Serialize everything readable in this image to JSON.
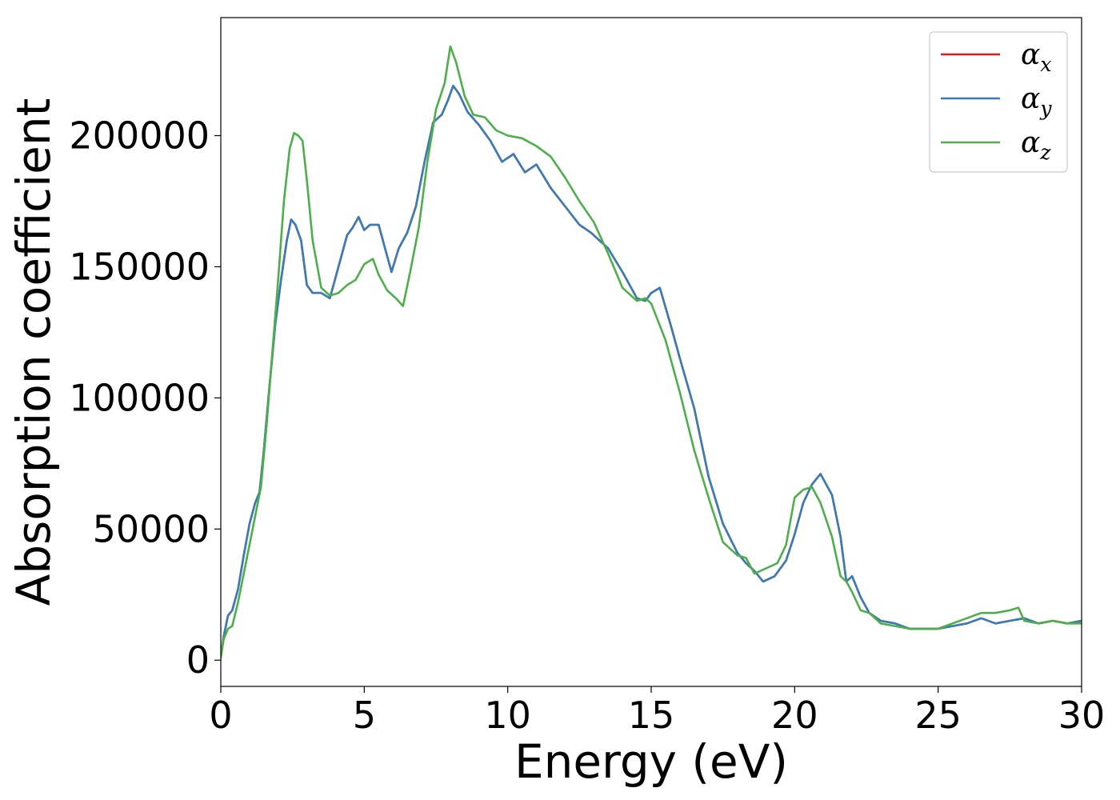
{
  "chart_data": {
    "type": "line",
    "xlabel": "Energy (eV)",
    "ylabel": "Absorption coefficient",
    "xlim": [
      0,
      30
    ],
    "ylim": [
      -10000,
      245000
    ],
    "xticks": [
      0,
      5,
      10,
      15,
      20,
      25,
      30
    ],
    "xtick_labels": [
      "0",
      "5",
      "10",
      "15",
      "20",
      "25",
      "30"
    ],
    "yticks": [
      0,
      50000,
      100000,
      150000,
      200000
    ],
    "ytick_labels": [
      "0",
      "50000",
      "100000",
      "150000",
      "200000"
    ],
    "grid": false,
    "legend_position": "top-right",
    "series": [
      {
        "name": "α_x",
        "legend_main": "α",
        "legend_sub": "x",
        "color": "#e41a1c",
        "x": [
          0,
          0.1,
          0.25,
          0.4,
          0.6,
          0.8,
          1.0,
          1.2,
          1.35,
          1.5,
          1.7,
          1.9,
          2.1,
          2.3,
          2.45,
          2.6,
          2.8,
          3.0,
          3.2,
          3.5,
          3.8,
          4.1,
          4.4,
          4.6,
          4.8,
          5.0,
          5.2,
          5.5,
          5.8,
          5.95,
          6.2,
          6.5,
          6.8,
          7.1,
          7.4,
          7.7,
          7.9,
          8.1,
          8.3,
          8.6,
          9.0,
          9.4,
          9.8,
          10.2,
          10.6,
          11.0,
          11.5,
          12.0,
          12.5,
          12.9,
          13.5,
          14.0,
          14.5,
          14.8,
          15.0,
          15.3,
          15.7,
          16.0,
          16.5,
          17.0,
          17.5,
          18.0,
          18.3,
          18.6,
          18.9,
          19.3,
          19.7,
          20.0,
          20.3,
          20.6,
          20.9,
          21.3,
          21.6,
          21.8,
          22.0,
          22.3,
          22.6,
          23.0,
          23.5,
          24.0,
          24.5,
          25.0,
          25.5,
          26.0,
          26.5,
          27.0,
          27.5,
          28.0,
          28.5,
          29.0,
          29.5,
          30.0
        ],
        "values": [
          1000,
          9000,
          17000,
          19000,
          27000,
          40000,
          52000,
          60000,
          64000,
          80000,
          105000,
          128000,
          145000,
          160000,
          168000,
          166000,
          160000,
          143000,
          140000,
          140000,
          138000,
          150000,
          162000,
          165000,
          169000,
          164000,
          166000,
          166000,
          154000,
          148000,
          157000,
          163000,
          173000,
          190000,
          205000,
          208000,
          213000,
          219000,
          216000,
          209000,
          204000,
          198000,
          190000,
          193000,
          186000,
          189000,
          180000,
          173000,
          166000,
          163000,
          157000,
          148000,
          138000,
          137000,
          140000,
          142000,
          127000,
          115000,
          96000,
          70000,
          52000,
          41000,
          37000,
          34000,
          30000,
          32000,
          38000,
          48000,
          60000,
          67000,
          71000,
          63000,
          47000,
          30000,
          32000,
          24000,
          18000,
          15000,
          14000,
          12000,
          12000,
          12000,
          13000,
          14000,
          16000,
          14000,
          15000,
          16000,
          14000,
          15000,
          14000,
          15000
        ]
      },
      {
        "name": "α_y",
        "legend_main": "α",
        "legend_sub": "y",
        "color": "#377eb8",
        "x": [
          0,
          0.1,
          0.25,
          0.4,
          0.6,
          0.8,
          1.0,
          1.2,
          1.35,
          1.5,
          1.7,
          1.9,
          2.1,
          2.3,
          2.45,
          2.6,
          2.8,
          3.0,
          3.2,
          3.5,
          3.8,
          4.1,
          4.4,
          4.6,
          4.8,
          5.0,
          5.2,
          5.5,
          5.8,
          5.95,
          6.2,
          6.5,
          6.8,
          7.1,
          7.4,
          7.7,
          7.9,
          8.1,
          8.3,
          8.6,
          9.0,
          9.4,
          9.8,
          10.2,
          10.6,
          11.0,
          11.5,
          12.0,
          12.5,
          12.9,
          13.5,
          14.0,
          14.5,
          14.8,
          15.0,
          15.3,
          15.7,
          16.0,
          16.5,
          17.0,
          17.5,
          18.0,
          18.3,
          18.6,
          18.9,
          19.3,
          19.7,
          20.0,
          20.3,
          20.6,
          20.9,
          21.3,
          21.6,
          21.8,
          22.0,
          22.3,
          22.6,
          23.0,
          23.5,
          24.0,
          24.5,
          25.0,
          25.5,
          26.0,
          26.5,
          27.0,
          27.5,
          28.0,
          28.5,
          29.0,
          29.5,
          30.0
        ],
        "values": [
          1000,
          9000,
          17000,
          19000,
          27000,
          40000,
          52000,
          60000,
          64000,
          80000,
          105000,
          128000,
          145000,
          160000,
          168000,
          166000,
          160000,
          143000,
          140000,
          140000,
          138000,
          150000,
          162000,
          165000,
          169000,
          164000,
          166000,
          166000,
          154000,
          148000,
          157000,
          163000,
          173000,
          190000,
          205000,
          208000,
          213000,
          219000,
          216000,
          209000,
          204000,
          198000,
          190000,
          193000,
          186000,
          189000,
          180000,
          173000,
          166000,
          163000,
          157000,
          148000,
          138000,
          137000,
          140000,
          142000,
          127000,
          115000,
          96000,
          70000,
          52000,
          41000,
          37000,
          34000,
          30000,
          32000,
          38000,
          48000,
          60000,
          67000,
          71000,
          63000,
          47000,
          30000,
          32000,
          24000,
          18000,
          15000,
          14000,
          12000,
          12000,
          12000,
          13000,
          14000,
          16000,
          14000,
          15000,
          16000,
          14000,
          15000,
          14000,
          15000
        ]
      },
      {
        "name": "α_z",
        "legend_main": "α",
        "legend_sub": "z",
        "color": "#4daf4a",
        "x": [
          0,
          0.1,
          0.25,
          0.4,
          0.6,
          0.8,
          1.0,
          1.2,
          1.4,
          1.6,
          1.8,
          2.0,
          2.2,
          2.4,
          2.55,
          2.7,
          2.85,
          3.0,
          3.2,
          3.5,
          3.8,
          4.1,
          4.4,
          4.7,
          5.0,
          5.3,
          5.5,
          5.8,
          6.1,
          6.35,
          6.6,
          6.9,
          7.2,
          7.5,
          7.8,
          8.0,
          8.2,
          8.5,
          8.8,
          9.2,
          9.6,
          10.0,
          10.5,
          11.0,
          11.5,
          12.0,
          12.5,
          13.0,
          13.5,
          14.0,
          14.5,
          14.8,
          15.0,
          15.5,
          16.0,
          16.5,
          17.0,
          17.5,
          18.0,
          18.3,
          18.6,
          19.0,
          19.4,
          19.7,
          20.0,
          20.3,
          20.6,
          20.9,
          21.3,
          21.6,
          21.8,
          22.0,
          22.3,
          22.6,
          23.0,
          23.5,
          24.0,
          24.5,
          25.0,
          25.5,
          26.0,
          26.5,
          27.0,
          27.5,
          27.8,
          28.0,
          28.5,
          29.0,
          29.5,
          30.0
        ],
        "values": [
          1000,
          8000,
          12000,
          13000,
          22000,
          33000,
          44000,
          55000,
          66000,
          90000,
          118000,
          145000,
          175000,
          195000,
          201000,
          200000,
          198000,
          183000,
          160000,
          142000,
          139000,
          140000,
          143000,
          145000,
          151000,
          153000,
          147000,
          141000,
          138000,
          135000,
          148000,
          165000,
          190000,
          210000,
          220000,
          234000,
          228000,
          215000,
          208000,
          207000,
          202000,
          200000,
          199000,
          196000,
          192000,
          184000,
          175000,
          167000,
          155000,
          142000,
          137000,
          138000,
          136000,
          122000,
          102000,
          80000,
          62000,
          45000,
          40000,
          39000,
          33000,
          35000,
          37000,
          44000,
          62000,
          65000,
          66000,
          60000,
          47000,
          32000,
          30000,
          26000,
          19000,
          18000,
          14000,
          13000,
          12000,
          12000,
          12000,
          14000,
          16000,
          18000,
          18000,
          19000,
          20000,
          15000,
          14000,
          15000,
          14000,
          14000
        ]
      }
    ]
  }
}
